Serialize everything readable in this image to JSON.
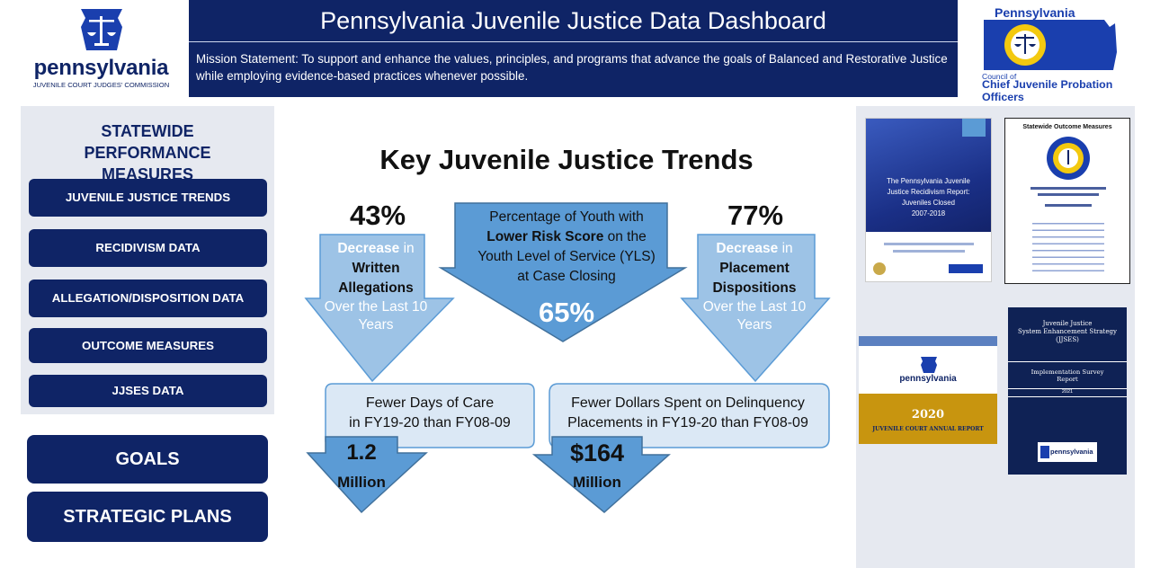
{
  "header": {
    "title": "Pennsylvania Juvenile Justice Data Dashboard",
    "mission": "Mission Statement: To support and enhance the values, principles, and programs that advance the goals of Balanced and Restorative Justice while employing evidence-based practices whenever possible."
  },
  "left_logo": {
    "word": "pennsylvania",
    "sub": "JUVENILE COURT JUDGES' COMMISSION"
  },
  "right_logo": {
    "top": "Pennsylvania",
    "small": "Council of",
    "bottom": "Chief Juvenile Probation Officers"
  },
  "sidebar": {
    "title": "STATEWIDE PERFORMANCE MEASURES",
    "items": [
      {
        "label": "JUVENILE JUSTICE TRENDS"
      },
      {
        "label": "RECIDIVISM DATA"
      },
      {
        "label": "ALLEGATION/DISPOSITION DATA"
      },
      {
        "label": "OUTCOME MEASURES"
      },
      {
        "label": "JJSES DATA"
      }
    ],
    "goals_label": "GOALS",
    "plans_label": "STRATEGIC PLANS"
  },
  "trends": {
    "title": "Key Juvenile Justice Trends",
    "left": {
      "pct": "43%",
      "l1": "Decrease",
      "l1b": " in",
      "l2": "Written",
      "l3": "Allegations",
      "l4": "Over the Last 10",
      "l5": "Years"
    },
    "center": {
      "l1": "Percentage of Youth with",
      "l2a": "Lower Risk Score",
      "l2b": " on the",
      "l3": "Youth Level of Service (YLS)",
      "l4": "at Case Closing",
      "pct": "65%"
    },
    "right": {
      "pct": "77%",
      "l1": "Decrease",
      "l1b": " in",
      "l2": "Placement",
      "l3": "Dispositions",
      "l4": "Over the Last 10",
      "l5": "Years"
    },
    "days": {
      "l1": "Fewer Days of Care",
      "l2": "in FY19-20 than FY08-09",
      "num": "1.2",
      "unit": "Million"
    },
    "dollars": {
      "l1": "Fewer Dollars Spent on Delinquency",
      "l2": "Placements in FY19-20 than FY08-09",
      "num": "$164",
      "unit": "Million"
    }
  },
  "reports": {
    "recidivism": {
      "l1": "The Pennsylvania Juvenile",
      "l2": "Justice Recidivism Report:",
      "l3": "Juveniles Closed",
      "l4": "2007-2018"
    },
    "outcome": {
      "title": "Statewide Outcome Measures"
    },
    "annual": {
      "brand": "pennsylvania",
      "year": "2020",
      "caption": "JUVENILE COURT ANNUAL REPORT"
    },
    "jjses": {
      "l1": "Juvenile Justice",
      "l2": "System Enhancement Strategy",
      "l3": "(JJSES)",
      "l4": "Implementation Survey",
      "l5": "Report",
      "year": "2021",
      "brand": "pennsylvania"
    }
  },
  "colors": {
    "navy": "#0f2466",
    "arrow_light": "#9dc3e6",
    "arrow_dark": "#5b9bd5",
    "box_light": "#dbe8f5",
    "gold": "#c8950f"
  }
}
